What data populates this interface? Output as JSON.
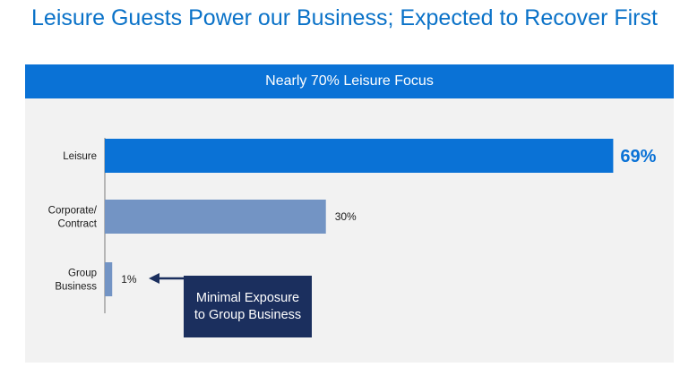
{
  "page": {
    "title": "Leisure Guests Power our Business; Expected to Recover First"
  },
  "callout": {
    "text": "Minimal Exposure to Group Business"
  },
  "colors": {
    "title": "#0a72c8",
    "header": "#0a72d6",
    "leisure_bar": "#0a72d6",
    "other_bars": "#7394c4",
    "callout_bg": "#1b2f5e",
    "panel_bg": "#f2f2f2"
  },
  "chart_data": {
    "type": "bar",
    "orientation": "horizontal",
    "title": "Nearly 70% Leisure Focus",
    "categories": [
      {
        "lines": [
          "Leisure"
        ]
      },
      {
        "lines": [
          "Corporate/",
          "Contract"
        ]
      },
      {
        "lines": [
          "Group",
          "Business"
        ]
      }
    ],
    "values": [
      69,
      30,
      1
    ],
    "value_labels": [
      "69%",
      "30%",
      "1%"
    ],
    "unit": "%",
    "xlim": [
      0,
      100
    ],
    "grid": false,
    "legend": "none"
  }
}
